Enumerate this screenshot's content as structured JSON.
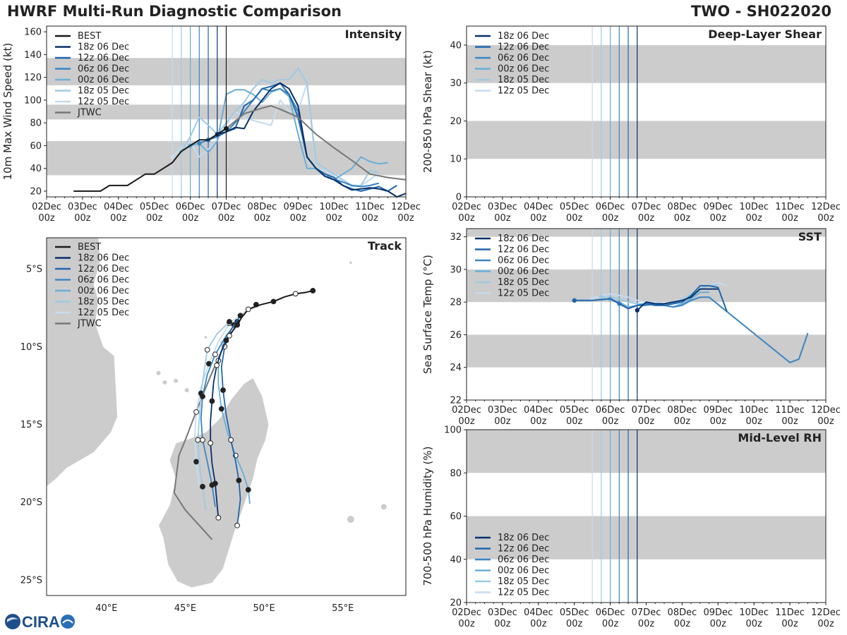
{
  "title_left": "HWRF Multi-Run Diagnostic Comparison",
  "title_right": "TWO - SH022020",
  "logo": {
    "text": "CIRA"
  },
  "colors": {
    "best": "#1a1a1a",
    "jtwc": "#777777",
    "shade": "#cccccc",
    "land": "#cccccc",
    "runs": [
      "#08306b",
      "#2166ac",
      "#3a86c4",
      "#6aaed6",
      "#9ecae1",
      "#c6dbef"
    ]
  },
  "runs": [
    "18z 06 Dec",
    "12z 06 Dec",
    "06z 06 Dec",
    "00z 06 Dec",
    "18z 05 Dec",
    "12z 05 Dec"
  ],
  "run_init_days": [
    4.75,
    4.5,
    4.25,
    4.0,
    3.75,
    3.5
  ],
  "time_axis": {
    "ticks": [
      "02Dec\n00z",
      "03Dec\n00z",
      "04Dec\n00z",
      "05Dec\n00z",
      "06Dec\n00z",
      "07Dec\n00z",
      "08Dec\n00z",
      "09Dec\n00z",
      "10Dec\n00z",
      "11Dec\n00z",
      "12Dec\n00z"
    ],
    "range_days": [
      0,
      10
    ]
  },
  "chart_data": [
    {
      "id": "intensity",
      "type": "line",
      "title": "Intensity",
      "ylabel": "10m Max Wind Speed (kt)",
      "ylim": [
        15,
        165
      ],
      "yticks": [
        20,
        40,
        60,
        80,
        100,
        120,
        140,
        160
      ],
      "bands": [
        [
          34,
          64
        ],
        [
          83,
          96
        ],
        [
          113,
          137
        ]
      ],
      "best": {
        "name": "BEST",
        "x": [
          0.75,
          1.0,
          1.25,
          1.5,
          1.75,
          2.0,
          2.25,
          2.5,
          2.75,
          3.0,
          3.25,
          3.5,
          3.75,
          4.0,
          4.25,
          4.5,
          4.75,
          5.0
        ],
        "y": [
          20,
          20,
          20,
          20,
          25,
          25,
          25,
          30,
          35,
          35,
          40,
          45,
          55,
          60,
          65,
          65,
          70,
          75
        ]
      },
      "jtwc": {
        "name": "JTWC",
        "x": [
          4.75,
          5.0,
          5.5,
          6.0,
          6.25,
          6.5,
          7.0,
          7.5,
          8.0,
          8.5,
          9.0,
          9.5,
          10.0
        ],
        "y": [
          70,
          75,
          88,
          93,
          95,
          92,
          85,
          70,
          58,
          47,
          35,
          32,
          30
        ]
      },
      "series": [
        {
          "name": "18z 06 Dec",
          "x": [
            4.75,
            5.0,
            5.25,
            5.5,
            5.75,
            6.0,
            6.25,
            6.5,
            6.75,
            7.0,
            7.25,
            7.5,
            7.75,
            8.0,
            8.25,
            8.5,
            8.75,
            9.0,
            9.25,
            9.5,
            9.75,
            10.0
          ],
          "y": [
            70,
            72,
            76,
            75,
            90,
            100,
            110,
            115,
            110,
            95,
            50,
            40,
            33,
            30,
            25,
            21,
            22,
            23,
            22,
            20,
            15,
            18
          ]
        },
        {
          "name": "12z 06 Dec",
          "x": [
            4.5,
            4.75,
            5.0,
            5.25,
            5.5,
            5.75,
            6.0,
            6.25,
            6.5,
            6.75,
            7.0,
            7.25,
            7.5,
            7.75,
            8.0,
            8.25,
            8.5,
            8.75,
            9.0,
            9.25,
            9.5,
            9.75
          ],
          "y": [
            65,
            68,
            72,
            75,
            95,
            100,
            110,
            112,
            115,
            105,
            85,
            50,
            40,
            35,
            32,
            25,
            22,
            20,
            22,
            24,
            20,
            25
          ]
        },
        {
          "name": "06z 06 Dec",
          "x": [
            4.25,
            4.5,
            4.75,
            5.0,
            5.25,
            5.5,
            5.75,
            6.0,
            6.25,
            6.5,
            6.75,
            7.0,
            7.25,
            7.5,
            7.75,
            8.0,
            8.25,
            8.5,
            8.75,
            9.0,
            9.25
          ],
          "y": [
            62,
            65,
            70,
            72,
            80,
            90,
            100,
            110,
            108,
            110,
            105,
            90,
            50,
            40,
            33,
            30,
            28,
            25,
            24,
            25,
            27
          ]
        },
        {
          "name": "00z 06 Dec",
          "x": [
            4.0,
            4.25,
            4.5,
            4.75,
            5.0,
            5.25,
            5.5,
            5.75,
            6.0,
            6.25,
            6.5,
            6.75,
            7.0,
            7.25,
            7.5,
            7.75,
            8.0,
            8.25,
            8.5,
            8.75,
            9.0,
            9.25,
            9.5
          ],
          "y": [
            60,
            62,
            54,
            64,
            105,
            109,
            109,
            105,
            98,
            107,
            110,
            103,
            70,
            40,
            40,
            35,
            30,
            35,
            40,
            50,
            46,
            44,
            45
          ]
        },
        {
          "name": "18z 05 Dec",
          "x": [
            3.75,
            4.0,
            4.25,
            4.5,
            4.75,
            5.0,
            5.25,
            5.5,
            5.75,
            6.0,
            6.25,
            6.5,
            6.75,
            7.0,
            7.25,
            7.5,
            7.75,
            8.0,
            8.25,
            8.5,
            8.75,
            9.0,
            9.25
          ],
          "y": [
            55,
            68,
            85,
            78,
            70,
            80,
            90,
            98,
            110,
            118,
            115,
            118,
            118,
            128,
            115,
            45,
            40,
            35,
            30,
            25,
            25,
            38,
            36
          ]
        },
        {
          "name": "12z 05 Dec",
          "x": [
            3.5,
            3.75,
            4.0,
            4.25,
            4.5,
            4.75,
            5.0,
            5.25,
            5.5,
            5.75,
            6.0,
            6.25,
            6.5,
            6.75,
            7.0,
            7.25,
            7.5,
            7.75,
            8.0,
            8.25,
            8.5,
            8.75,
            9.0,
            9.25
          ],
          "y": [
            50,
            58,
            63,
            50,
            57,
            64,
            78,
            90,
            85,
            82,
            80,
            78,
            100,
            90,
            90,
            115,
            40,
            38,
            33,
            28,
            24,
            25,
            30,
            36
          ]
        }
      ]
    },
    {
      "id": "shear",
      "type": "line",
      "title": "Deep-Layer Shear",
      "ylabel": "200-850 hPa Shear (kt)",
      "ylim": [
        0,
        45
      ],
      "yticks": [
        0,
        10,
        20,
        30,
        40
      ],
      "bands": [
        [
          10,
          20
        ],
        [
          30,
          40
        ]
      ],
      "series": []
    },
    {
      "id": "sst",
      "type": "line",
      "title": "SST",
      "ylabel": "Sea Surface Temp (°C)",
      "ylim": [
        22,
        32.5
      ],
      "yticks": [
        22,
        24,
        26,
        28,
        30,
        32
      ],
      "bands": [
        [
          24,
          26
        ],
        [
          28,
          30
        ],
        [
          32,
          34
        ]
      ],
      "series": [
        {
          "name": "18z 06 Dec",
          "x": [
            4.75,
            5.0,
            5.25,
            5.5,
            5.75,
            6.0,
            6.25,
            6.5,
            6.75,
            7.0
          ],
          "y": [
            27.5,
            28.0,
            27.9,
            27.9,
            28.0,
            28.1,
            28.3,
            28.8,
            28.8,
            28.8
          ]
        },
        {
          "name": "12z 06 Dec",
          "x": [
            3.0,
            3.5,
            4.0,
            4.5,
            4.75,
            5.0,
            5.25,
            5.5,
            5.75,
            6.0,
            6.25,
            6.5,
            6.75,
            7.0,
            7.25
          ],
          "y": [
            28.1,
            28.1,
            28.2,
            27.6,
            27.8,
            27.9,
            27.8,
            27.8,
            27.9,
            28.0,
            28.4,
            29.0,
            29.0,
            28.9,
            27.4
          ]
        },
        {
          "name": "06z 06 Dec",
          "x": [
            4.25,
            4.5,
            4.75,
            5.0,
            5.25,
            5.5,
            5.75,
            6.0,
            6.25,
            6.5,
            6.75,
            9.0,
            9.25,
            9.5
          ],
          "y": [
            27.9,
            27.6,
            27.8,
            27.8,
            27.9,
            27.8,
            27.7,
            27.8,
            28.1,
            28.3,
            28.3,
            24.3,
            24.5,
            26.1
          ]
        },
        {
          "name": "00z 06 Dec",
          "x": [
            4.0,
            4.25,
            4.5,
            4.75,
            5.0,
            5.25,
            5.5,
            5.75,
            6.0,
            6.25,
            6.5,
            6.75
          ],
          "y": [
            28.2,
            28.0,
            27.7,
            27.8,
            27.9,
            27.9,
            27.8,
            27.7,
            27.9,
            28.2,
            28.6,
            28.6
          ]
        },
        {
          "name": "18z 05 Dec",
          "x": [
            3.75,
            4.0,
            4.25,
            4.5,
            4.75,
            5.0,
            5.25,
            5.5,
            5.75,
            6.0,
            6.25,
            6.5,
            6.75,
            7.0
          ],
          "y": [
            28.3,
            28.3,
            28.2,
            28.0,
            27.9,
            27.9,
            27.8,
            27.8,
            27.9,
            28.2,
            28.5,
            28.8,
            29.0,
            29.1
          ]
        },
        {
          "name": "12z 05 Dec",
          "x": [
            3.5,
            3.75,
            4.0,
            4.25,
            4.5,
            4.75,
            5.0,
            5.25,
            5.5,
            5.75,
            6.0,
            6.25,
            6.5,
            6.75,
            7.0,
            7.25
          ],
          "y": [
            28.2,
            28.4,
            28.5,
            28.4,
            28.3,
            28.1,
            28.0,
            28.0,
            27.9,
            28.0,
            28.2,
            28.5,
            28.8,
            29.0,
            29.2,
            29.0
          ]
        }
      ]
    },
    {
      "id": "rh",
      "type": "line",
      "title": "Mid-Level RH",
      "ylabel": "700-500 hPa Humidity (%)",
      "ylim": [
        20,
        100
      ],
      "yticks": [
        20,
        40,
        60,
        80,
        100
      ],
      "bands": [
        [
          40,
          60
        ],
        [
          80,
          100
        ]
      ],
      "series": []
    },
    {
      "id": "track",
      "type": "scatter",
      "title": "Track",
      "xlabel_ticks": [
        "40°E",
        "45°E",
        "50°E",
        "55°E"
      ],
      "ylabel_ticks": [
        "5°S",
        "10°S",
        "15°S",
        "20°S",
        "25°S"
      ],
      "lon_range": [
        36.2,
        59.0
      ],
      "lat_range": [
        -26.0,
        -3.0
      ],
      "best": {
        "name": "BEST",
        "lon": [
          53.1,
          52.7,
          52.0,
          51.3,
          50.6,
          49.8,
          49.0,
          48.6,
          48.3,
          48.0,
          47.8,
          47.6
        ],
        "lat": [
          -6.4,
          -6.5,
          -6.6,
          -6.8,
          -7.1,
          -7.3,
          -7.6,
          -8.1,
          -8.6,
          -9.0,
          -9.3,
          -9.6
        ]
      },
      "jtwc": {
        "name": "JTWC",
        "lon": [
          47.6,
          47.2,
          46.6,
          45.8,
          45.0,
          44.6,
          44.3,
          45.0,
          45.9,
          46.7
        ],
        "lat": [
          -9.6,
          -10.5,
          -11.9,
          -13.9,
          -16.0,
          -17.0,
          -19.4,
          -20.5,
          -21.5,
          -22.4
        ]
      },
      "series": [
        {
          "name": "18z 06 Dec",
          "lon": [
            47.6,
            47.3,
            47.0,
            46.8,
            46.7,
            46.6,
            46.6,
            46.7,
            46.9,
            47.0,
            47.1
          ],
          "lat": [
            -9.6,
            -10.3,
            -11.2,
            -12.3,
            -13.5,
            -14.8,
            -16.2,
            -17.5,
            -18.8,
            -19.9,
            -21.0
          ]
        },
        {
          "name": "12z 06 Dec",
          "lon": [
            48.5,
            47.9,
            47.5,
            47.3,
            47.4,
            47.6,
            47.9,
            48.2,
            48.4,
            48.5,
            48.3
          ],
          "lat": [
            -8.0,
            -8.9,
            -10.0,
            -11.3,
            -12.8,
            -14.4,
            -16.0,
            -17.4,
            -18.6,
            -19.8,
            -21.5
          ]
        },
        {
          "name": "06z 06 Dec",
          "lon": [
            48.3,
            47.6,
            46.9,
            46.4,
            46.1,
            46.0,
            46.1,
            46.4,
            46.7,
            46.9
          ],
          "lat": [
            -8.4,
            -9.3,
            -10.5,
            -11.8,
            -13.2,
            -14.6,
            -16.0,
            -17.4,
            -18.9,
            -20.3
          ]
        },
        {
          "name": "00z 06 Dec",
          "lon": [
            48.1,
            47.5,
            47.1,
            47.1,
            47.3,
            47.7,
            48.2,
            48.7,
            49.0,
            49.1
          ],
          "lat": [
            -8.6,
            -9.6,
            -10.9,
            -12.4,
            -14.0,
            -15.6,
            -17.0,
            -18.2,
            -19.2,
            -20.1
          ]
        },
        {
          "name": "18z 05 Dec",
          "lon": [
            47.8,
            47.0,
            46.4,
            46.2,
            46.0,
            45.9,
            45.8,
            45.9,
            46.1,
            46.3
          ],
          "lat": [
            -8.4,
            -9.2,
            -10.2,
            -11.6,
            -13.0,
            -14.5,
            -16.0,
            -17.5,
            -19.0,
            -20.5
          ]
        },
        {
          "name": "12z 05 Dec",
          "lon": [
            49.5,
            48.6,
            47.8,
            47.1,
            46.5,
            46.0,
            45.7,
            45.6,
            45.7,
            45.9
          ],
          "lat": [
            -7.3,
            -7.9,
            -8.5,
            -9.7,
            -11.1,
            -12.6,
            -14.2,
            -15.8,
            -17.4,
            -19.0
          ]
        }
      ]
    }
  ]
}
